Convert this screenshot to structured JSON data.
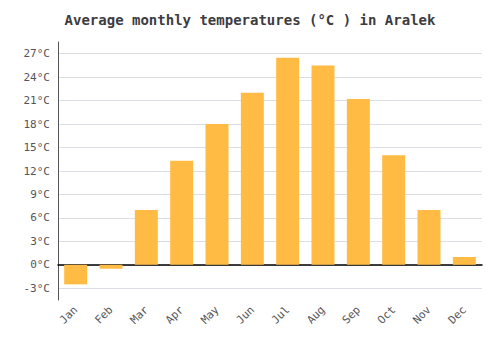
{
  "chart_data": {
    "type": "bar",
    "title": "Average monthly temperatures (°C ) in Aralek",
    "categories": [
      "Jan",
      "Feb",
      "Mar",
      "Apr",
      "May",
      "Jun",
      "Jul",
      "Aug",
      "Sep",
      "Oct",
      "Nov",
      "Dec"
    ],
    "values": [
      -2.5,
      -0.5,
      7.0,
      13.3,
      18.0,
      22.0,
      26.5,
      25.5,
      21.2,
      14.0,
      7.0,
      1.0
    ],
    "color": "#FFBB44",
    "ylim": [
      -4.5,
      28.5
    ],
    "yticks": [
      {
        "value": -3,
        "label": "-3°C"
      },
      {
        "value": 0,
        "label": "0°C"
      },
      {
        "value": 3,
        "label": "3°C"
      },
      {
        "value": 6,
        "label": "6°C"
      },
      {
        "value": 9,
        "label": "9°C"
      },
      {
        "value": 12,
        "label": "12°C"
      },
      {
        "value": 15,
        "label": "15°C"
      },
      {
        "value": 18,
        "label": "18°C"
      },
      {
        "value": 21,
        "label": "21°C"
      },
      {
        "value": 24,
        "label": "24°C"
      },
      {
        "value": 27,
        "label": "27°C"
      }
    ],
    "grid": true
  }
}
